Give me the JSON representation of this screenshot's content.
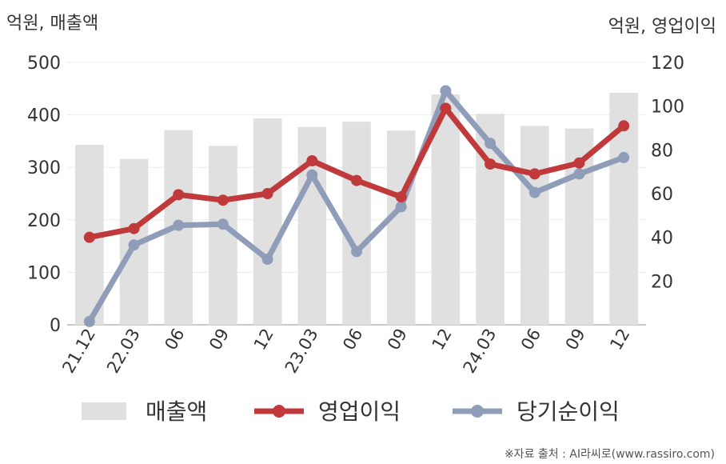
{
  "chart_data": {
    "type": "bar+line",
    "left_axis_unit": "억원, 매출액",
    "right_axis_unit": "억원, 영업이익",
    "categories": [
      "21.12",
      "22.03",
      "06",
      "09",
      "12",
      "23.03",
      "06",
      "09",
      "12",
      "24.03",
      "06",
      "09",
      "12"
    ],
    "y_left": {
      "range": [
        0,
        500
      ],
      "ticks": [
        "0",
        "100",
        "200",
        "300",
        "400",
        "500"
      ]
    },
    "y_right": {
      "range": [
        0,
        120
      ],
      "ticks": [
        "20",
        "40",
        "60",
        "80",
        "100",
        "120"
      ]
    },
    "grid": true,
    "series": [
      {
        "name": "매출액",
        "kind": "bar",
        "axis": "left",
        "color": "#e0e0e0",
        "values": [
          343,
          316,
          371,
          341,
          393,
          377,
          387,
          370,
          439,
          402,
          379,
          374,
          442
        ]
      },
      {
        "name": "영업이익",
        "kind": "line",
        "axis": "right",
        "color": "#c0393b",
        "values": [
          40,
          44,
          59.5,
          57,
          60,
          75,
          66,
          58.5,
          99,
          73.5,
          69,
          74,
          91
        ]
      },
      {
        "name": "당기순이익",
        "kind": "line",
        "axis": "right",
        "color": "#8f9db8",
        "values": [
          1.5,
          36.5,
          45.5,
          46,
          30,
          68.5,
          33.5,
          54,
          107,
          83,
          60.5,
          69,
          76.5
        ]
      }
    ],
    "legend_position": "bottom"
  },
  "source_text": "※자료 출처 : AI라씨로(www.rassiro.com)"
}
